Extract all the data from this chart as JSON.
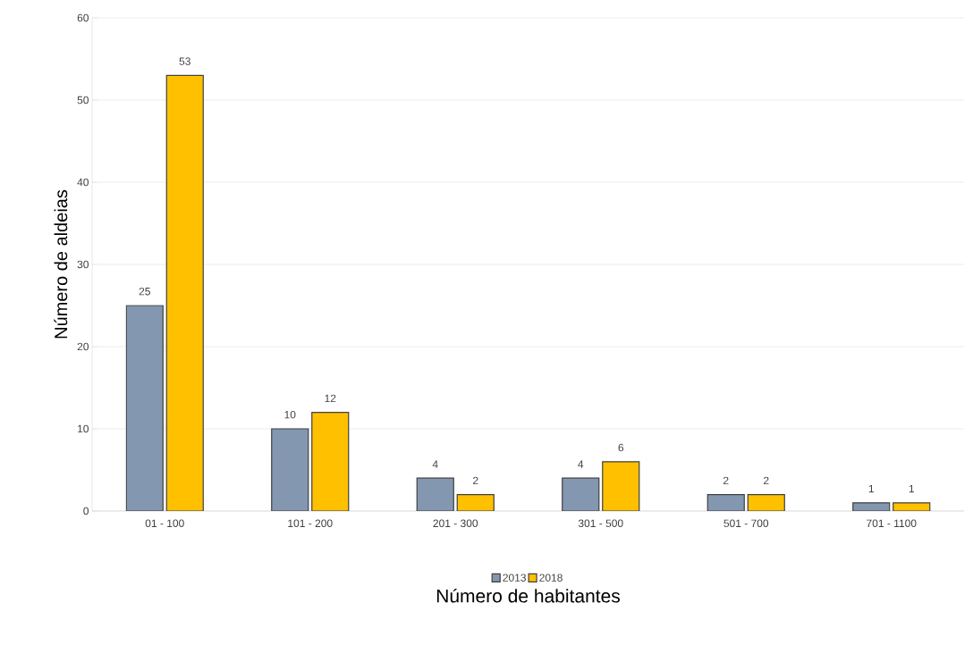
{
  "chart_data": {
    "type": "bar",
    "xlabel": "Número de habitantes",
    "ylabel": "Número de aldeias",
    "categories": [
      "01 - 100",
      "101 - 200",
      "201 - 300",
      "301 - 500",
      "501 - 700",
      "701 - 1100"
    ],
    "series": [
      {
        "name": "2013",
        "color": "#8497b0",
        "values": [
          25,
          10,
          4,
          4,
          2,
          1
        ]
      },
      {
        "name": "2018",
        "color": "#ffc000",
        "values": [
          53,
          12,
          2,
          6,
          2,
          1
        ]
      }
    ],
    "ylim": [
      0,
      60
    ],
    "yticks": [
      0,
      10,
      20,
      30,
      40,
      50,
      60
    ],
    "grid": "y",
    "legend": "bottom",
    "data_labels": true
  }
}
